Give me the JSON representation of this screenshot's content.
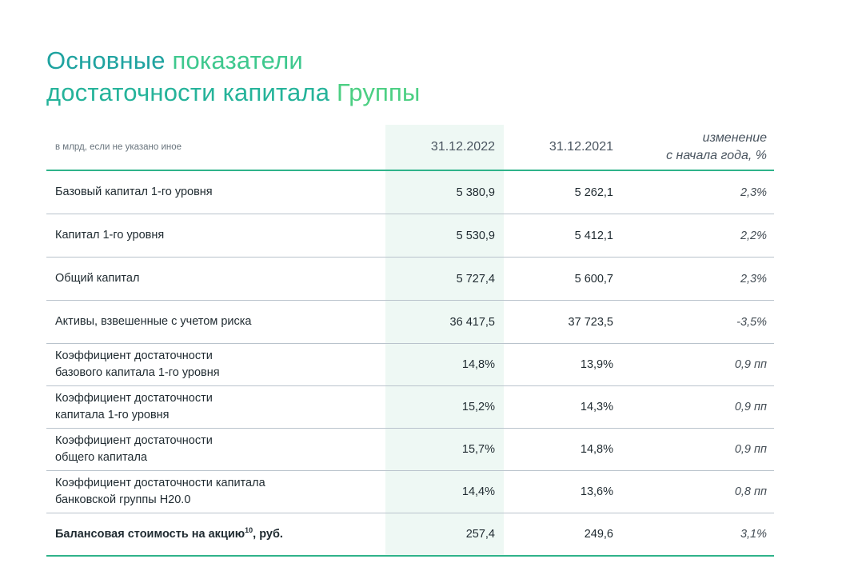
{
  "title": {
    "part1": "Основные ",
    "part2": "показатели",
    "part3": "достаточности капитала ",
    "part4": "Группы"
  },
  "table": {
    "header": {
      "units": "в млрд, если не указано иное",
      "col_a": "31.12.2022",
      "col_b": "31.12.2021",
      "col_c_line1": "изменение",
      "col_c_line2": "с начала года, %"
    },
    "rows": [
      {
        "label1": "Базовый капитал 1-го уровня",
        "label2": "",
        "a": "5 380,9",
        "b": "5 262,1",
        "c": "2,3%"
      },
      {
        "label1": "Капитал 1-го уровня",
        "label2": "",
        "a": "5 530,9",
        "b": "5 412,1",
        "c": "2,2%"
      },
      {
        "label1": "Общий капитал",
        "label2": "",
        "a": "5 727,4",
        "b": "5 600,7",
        "c": "2,3%"
      },
      {
        "label1": "Активы, взвешенные с учетом риска",
        "label2": "",
        "a": "36 417,5",
        "b": "37 723,5",
        "c": "-3,5%"
      },
      {
        "label1": "Коэффициент достаточности",
        "label2": "базового капитала 1-го уровня",
        "a": "14,8%",
        "b": "13,9%",
        "c": "0,9 пп"
      },
      {
        "label1": "Коэффициент достаточности",
        "label2": "капитала 1-го уровня",
        "a": "15,2%",
        "b": "14,3%",
        "c": "0,9 пп"
      },
      {
        "label1": "Коэффициент достаточности",
        "label2": "общего капитала",
        "a": "15,7%",
        "b": "14,8%",
        "c": "0,9 пп"
      },
      {
        "label1": "Коэффициент достаточности капитала",
        "label2": "банковской группы Н20.0",
        "a": "14,4%",
        "b": "13,6%",
        "c": "0,8 пп"
      }
    ],
    "last_row": {
      "label": "Балансовая стоимость на акцию",
      "sup": "10",
      "suffix": ", руб.",
      "a": "257,4",
      "b": "249,6",
      "c": "3,1%"
    }
  }
}
